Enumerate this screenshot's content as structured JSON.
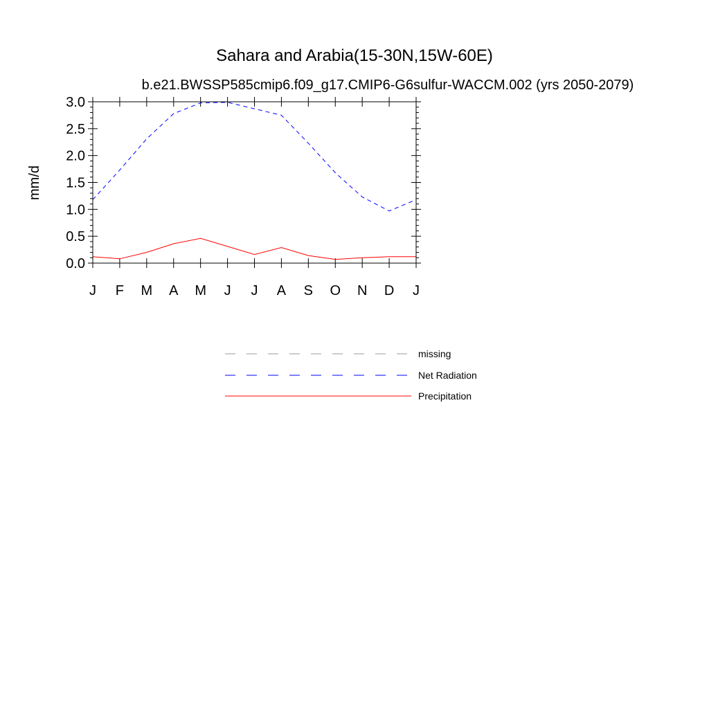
{
  "chart_data": {
    "type": "line",
    "title": "Sahara and Arabia(15-30N,15W-60E)",
    "subtitle": "b.e21.BWSSP585cmip6.f09_g17.CMIP6-G6sulfur-WACCM.002 (yrs 2050-2079)",
    "ylabel": "mm/d",
    "xlabel": "",
    "categories": [
      "J",
      "F",
      "M",
      "A",
      "M",
      "J",
      "J",
      "A",
      "S",
      "O",
      "N",
      "D",
      "J"
    ],
    "ylim": [
      0,
      3.0
    ],
    "yticks": [
      "0.0",
      "0.5",
      "1.0",
      "1.5",
      "2.0",
      "2.5",
      "3.0"
    ],
    "grid": false,
    "legend_placement": "below",
    "series": [
      {
        "name": "Net Radiation",
        "color": "#0000ff",
        "dash": "dashed",
        "values": [
          1.18,
          1.73,
          2.31,
          2.78,
          2.98,
          2.99,
          2.87,
          2.75,
          2.23,
          1.68,
          1.23,
          0.97,
          1.18
        ]
      },
      {
        "name": "Precipitation",
        "color": "#ff0000",
        "dash": "solid",
        "values": [
          0.12,
          0.08,
          0.2,
          0.36,
          0.46,
          0.31,
          0.16,
          0.29,
          0.14,
          0.07,
          0.1,
          0.12,
          0.12
        ]
      }
    ],
    "legend": [
      {
        "label": "missing",
        "color": "#9a9a9a",
        "dash": "dashed"
      },
      {
        "label": "Net Radiation",
        "color": "#0000ff",
        "dash": "dashed"
      },
      {
        "label": "Precipitation",
        "color": "#ff0000",
        "dash": "solid"
      }
    ]
  }
}
